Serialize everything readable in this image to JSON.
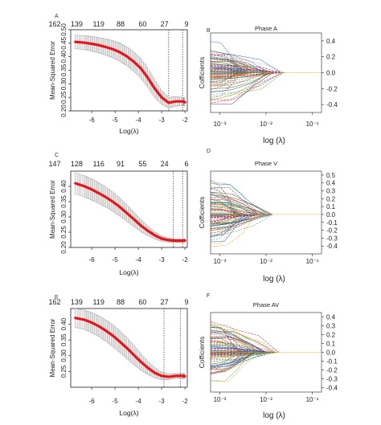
{
  "chart_data": [
    {
      "panel": "A",
      "type": "line",
      "xlabel": "Log(λ)",
      "ylabel": "Mean-Squared Error",
      "xlim": [
        -6.9,
        -1.9
      ],
      "ylim": [
        0.2,
        0.5
      ],
      "xticks": [
        "-6",
        "-5",
        "-4",
        "-3",
        "-2"
      ],
      "yticks": [
        "0.20",
        "0.25",
        "0.30",
        "0.35",
        "0.40",
        "0.45",
        "0.50"
      ],
      "top_labels": [
        "162",
        "139",
        "119",
        "88",
        "60",
        "27",
        "9"
      ],
      "vlines": [
        -2.7,
        -2.1
      ],
      "x": [
        -6.7,
        -6.3,
        -6.0,
        -5.7,
        -5.4,
        -5.1,
        -4.8,
        -4.5,
        -4.2,
        -3.9,
        -3.6,
        -3.3,
        -3.0,
        -2.7,
        -2.4,
        -2.1,
        -2.0
      ],
      "mse": [
        0.455,
        0.452,
        0.448,
        0.443,
        0.436,
        0.428,
        0.417,
        0.402,
        0.382,
        0.358,
        0.323,
        0.283,
        0.25,
        0.23,
        0.235,
        0.235,
        0.232
      ],
      "err": [
        0.025,
        0.026,
        0.027,
        0.028,
        0.03,
        0.032,
        0.034,
        0.035,
        0.036,
        0.037,
        0.037,
        0.034,
        0.026,
        0.02,
        0.018,
        0.015,
        0.014
      ]
    },
    {
      "panel": "B",
      "type": "line",
      "title": "Phase A",
      "xlabel": "log (λ)",
      "ylabel": "Cofficients",
      "yticks": [
        "-0.4",
        "-0.2",
        "0.0",
        "0.2",
        "0.4"
      ],
      "ylim": [
        -0.5,
        0.5
      ],
      "xticks": [
        "10⁻³",
        "10⁻²",
        "10⁻¹"
      ],
      "converge_log10": -1.55
    },
    {
      "panel": "C",
      "type": "line",
      "xlabel": "Log(λ)",
      "ylabel": "Mean-Squared Error",
      "xlim": [
        -6.9,
        -1.9
      ],
      "ylim": [
        0.2,
        0.45
      ],
      "xticks": [
        "-6",
        "-5",
        "-4",
        "-3",
        "-2"
      ],
      "yticks": [
        "0.20",
        "0.25",
        "0.30",
        "0.35",
        "0.40"
      ],
      "top_labels": [
        "147",
        "128",
        "116",
        "91",
        "55",
        "24",
        "6"
      ],
      "vlines": [
        -2.5,
        -2.1
      ],
      "x": [
        -6.7,
        -6.3,
        -6.0,
        -5.7,
        -5.4,
        -5.1,
        -4.8,
        -4.5,
        -4.2,
        -3.9,
        -3.6,
        -3.3,
        -3.0,
        -2.7,
        -2.4,
        -2.1,
        -2.0
      ],
      "mse": [
        0.41,
        0.4,
        0.39,
        0.378,
        0.365,
        0.35,
        0.333,
        0.313,
        0.293,
        0.272,
        0.255,
        0.24,
        0.229,
        0.224,
        0.222,
        0.222,
        0.223
      ],
      "err": [
        0.035,
        0.035,
        0.035,
        0.034,
        0.033,
        0.032,
        0.03,
        0.027,
        0.024,
        0.02,
        0.016,
        0.012,
        0.009,
        0.007,
        0.006,
        0.006,
        0.006
      ]
    },
    {
      "panel": "D",
      "type": "line",
      "title": "Phase V",
      "xlabel": "log (λ)",
      "ylabel": "Cofficients",
      "yticks": [
        "-0.4",
        "-0.3",
        "-0.2",
        "-0.1",
        "0.0",
        "0.1",
        "0.2",
        "0.3",
        "0.4",
        "0.5"
      ],
      "ylim": [
        -0.5,
        0.55
      ],
      "xticks": [
        "10⁻³",
        "10⁻²",
        "10⁻¹"
      ],
      "converge_log10": -1.85
    },
    {
      "panel": "E",
      "type": "line",
      "xlabel": "Log(λ)",
      "ylabel": "Mean-Squared Error",
      "xlim": [
        -6.9,
        -1.9
      ],
      "ylim": [
        0.2,
        0.45
      ],
      "xticks": [
        "-6",
        "-5",
        "-4",
        "-3",
        "-2"
      ],
      "yticks": [
        "0.25",
        "0.30",
        "0.35",
        "0.40"
      ],
      "top_labels": [
        "162",
        "139",
        "119",
        "88",
        "60",
        "27",
        "9"
      ],
      "vlines": [
        -2.9,
        -2.2
      ],
      "x": [
        -6.7,
        -6.3,
        -6.0,
        -5.7,
        -5.4,
        -5.1,
        -4.8,
        -4.5,
        -4.2,
        -3.9,
        -3.6,
        -3.3,
        -3.0,
        -2.7,
        -2.4,
        -2.1,
        -2.0
      ],
      "mse": [
        0.42,
        0.414,
        0.405,
        0.394,
        0.38,
        0.364,
        0.345,
        0.325,
        0.303,
        0.281,
        0.262,
        0.246,
        0.236,
        0.233,
        0.236,
        0.236,
        0.235
      ],
      "err": [
        0.03,
        0.031,
        0.032,
        0.033,
        0.034,
        0.035,
        0.035,
        0.034,
        0.031,
        0.027,
        0.021,
        0.016,
        0.012,
        0.009,
        0.008,
        0.008,
        0.008
      ]
    },
    {
      "panel": "F",
      "type": "line",
      "title": "Phase AV",
      "xlabel": "log (λ)",
      "ylabel": "Cofficients",
      "yticks": [
        "-0.4",
        "-0.3",
        "-0.2",
        "-0.1",
        "0.0",
        "0.1",
        "0.2",
        "0.3",
        "0.4"
      ],
      "ylim": [
        -0.45,
        0.45
      ],
      "xticks": [
        "10⁻³",
        "10⁻²",
        "10⁻¹"
      ],
      "converge_log10": -1.7
    }
  ],
  "colors": {
    "mse_line": "#e8141b",
    "error_bars": "#9a9a9a",
    "axis": "#222222",
    "coef_palette": [
      "#2e7d32",
      "#c62828",
      "#1565c0",
      "#ef6c00",
      "#6a1b9a",
      "#00838f",
      "#9e9d24",
      "#ad1457",
      "#4e342e",
      "#546e7a",
      "#f9a825",
      "#7cb342"
    ]
  }
}
